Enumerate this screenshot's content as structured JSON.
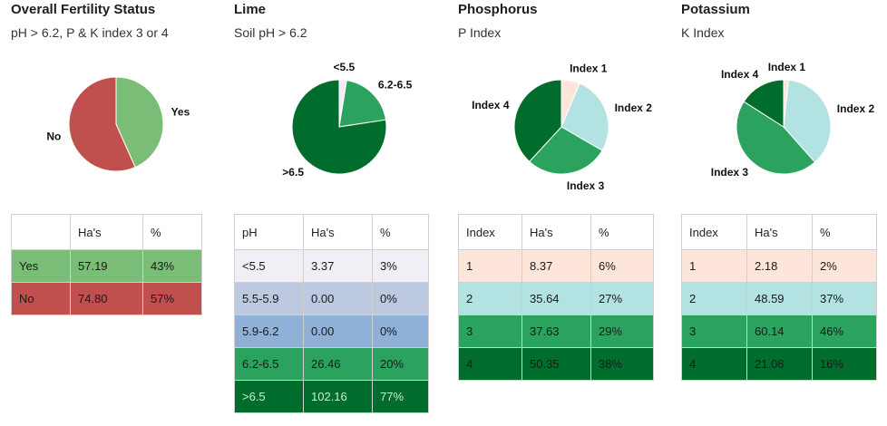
{
  "panels": [
    {
      "id": "overall",
      "title": "Overall Fertility Status",
      "subtitle": "pH > 6.2, P & K index 3 or 4",
      "table": {
        "headers": [
          "",
          "Ha's",
          "%"
        ],
        "rows": [
          {
            "label": "Yes",
            "ha": "57.19",
            "pct": "43%",
            "color": "#7abd76",
            "text_color": "#1a1a1a"
          },
          {
            "label": "No",
            "ha": "74.80",
            "pct": "57%",
            "color": "#c0504d",
            "text_color": "#1a1a1a"
          }
        ]
      }
    },
    {
      "id": "lime",
      "title": "Lime",
      "subtitle": "Soil pH > 6.2",
      "table": {
        "headers": [
          "pH",
          "Ha's",
          "%"
        ],
        "rows": [
          {
            "label": "<5.5",
            "ha": "3.37",
            "pct": "3%",
            "color": "#f1eef6",
            "text_color": "#1a1a1a"
          },
          {
            "label": "5.5-5.9",
            "ha": "0.00",
            "pct": "0%",
            "color": "#bdc9e1",
            "text_color": "#1a1a1a"
          },
          {
            "label": "5.9-6.2",
            "ha": "0.00",
            "pct": "0%",
            "color": "#8fb1d8",
            "text_color": "#1a1a1a"
          },
          {
            "label": "6.2-6.5",
            "ha": "26.46",
            "pct": "20%",
            "color": "#2ca25f",
            "text_color": "#1a1a1a"
          },
          {
            "label": ">6.5",
            "ha": "102.16",
            "pct": "77%",
            "color": "#006d2c",
            "text_color": "#cfe8d6"
          }
        ]
      }
    },
    {
      "id": "phosphorus",
      "title": "Phosphorus",
      "subtitle": "P Index",
      "table": {
        "headers": [
          "Index",
          "Ha's",
          "%"
        ],
        "rows": [
          {
            "label": "1",
            "ha": "8.37",
            "pct": "6%",
            "color": "#fde5da",
            "text_color": "#1a1a1a"
          },
          {
            "label": "2",
            "ha": "35.64",
            "pct": "27%",
            "color": "#b2e2e2",
            "text_color": "#1a1a1a"
          },
          {
            "label": "3",
            "ha": "37.63",
            "pct": "29%",
            "color": "#2ca25f",
            "text_color": "#1a1a1a"
          },
          {
            "label": "4",
            "ha": "50.35",
            "pct": "38%",
            "color": "#006d2c",
            "text_color": "#1a1a1a"
          }
        ]
      }
    },
    {
      "id": "potassium",
      "title": "Potassium",
      "subtitle": "K Index",
      "table": {
        "headers": [
          "Index",
          "Ha's",
          "%"
        ],
        "rows": [
          {
            "label": "1",
            "ha": "2.18",
            "pct": "2%",
            "color": "#fde5da",
            "text_color": "#1a1a1a"
          },
          {
            "label": "2",
            "ha": "48.59",
            "pct": "37%",
            "color": "#b2e2e2",
            "text_color": "#1a1a1a"
          },
          {
            "label": "3",
            "ha": "60.14",
            "pct": "46%",
            "color": "#2ca25f",
            "text_color": "#1a1a1a"
          },
          {
            "label": "4",
            "ha": "21.08",
            "pct": "16%",
            "color": "#006d2c",
            "text_color": "#1a1a1a"
          }
        ]
      }
    }
  ],
  "chart_data": [
    {
      "type": "pie",
      "title": "Overall Fertility Status",
      "subtitle": "pH > 6.2, P & K index 3 or 4",
      "categories": [
        "Yes",
        "No"
      ],
      "values": [
        57.19,
        74.8
      ],
      "colors": [
        "#7abd76",
        "#c0504d"
      ]
    },
    {
      "type": "pie",
      "title": "Lime",
      "subtitle": "Soil pH > 6.2",
      "categories": [
        "<5.5",
        "5.5-5.9",
        "5.9-6.2",
        "6.2-6.5",
        ">6.5"
      ],
      "values": [
        3.37,
        0.0,
        0.0,
        26.46,
        102.16
      ],
      "colors": [
        "#f1eef6",
        "#bdc9e1",
        "#8fb1d8",
        "#2ca25f",
        "#006d2c"
      ],
      "labeled": [
        "<5.5",
        "6.2-6.5",
        ">6.5"
      ]
    },
    {
      "type": "pie",
      "title": "Phosphorus",
      "subtitle": "P Index",
      "categories": [
        "Index 1",
        "Index 2",
        "Index 3",
        "Index 4"
      ],
      "values": [
        8.37,
        35.64,
        37.63,
        50.35
      ],
      "colors": [
        "#fde5da",
        "#b2e2e2",
        "#2ca25f",
        "#006d2c"
      ]
    },
    {
      "type": "pie",
      "title": "Potassium",
      "subtitle": "K Index",
      "categories": [
        "Index 1",
        "Index 2",
        "Index 3",
        "Index 4"
      ],
      "values": [
        2.18,
        48.59,
        60.14,
        21.08
      ],
      "colors": [
        "#fde5da",
        "#b2e2e2",
        "#2ca25f",
        "#006d2c"
      ]
    }
  ]
}
